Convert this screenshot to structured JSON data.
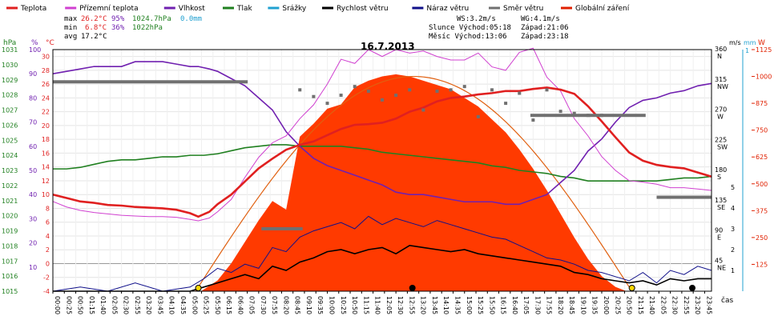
{
  "chart_data": {
    "type": "line",
    "title": "16.7.2013",
    "xlabel": "čas",
    "legend": [
      {
        "name": "Teplota",
        "color": "#e02020"
      },
      {
        "name": "Přízemní teplota",
        "color": "#d040d0"
      },
      {
        "name": "Vlhkost",
        "color": "#7020b0"
      },
      {
        "name": "Tlak",
        "color": "#208020"
      },
      {
        "name": "Srážky",
        "color": "#20a0d0"
      },
      {
        "name": "Rychlost větru",
        "color": "#000000"
      },
      {
        "name": "Náraz větru",
        "color": "#10108a"
      },
      {
        "name": "Směr větru",
        "color": "#707070"
      },
      {
        "name": "Globální záření",
        "color": "#e02000"
      }
    ],
    "stats": {
      "max": {
        "label": "max",
        "temp": "26.2°C",
        "hum": "95%",
        "press": "1024.7hPa",
        "rain": "0.0mm"
      },
      "min": {
        "label": "min",
        "temp": "6.8°C",
        "hum": "36%",
        "press": "1022hPa"
      },
      "avg": {
        "label": "avg",
        "temp": "17.2°C"
      }
    },
    "info": {
      "ws": "WS:3.2m/s",
      "wg": "WG:4.1m/s",
      "sun": "Slunce Východ:05:18",
      "sunset": "Západ:21:06",
      "moon": "Měsíc Východ:13:06",
      "moonset": "Západ:23:18"
    },
    "axes": {
      "hpa": {
        "unit": "hPa",
        "range": [
          1015,
          1031
        ],
        "ticks": [
          "1015",
          "1016",
          "1017",
          "1018",
          "1019",
          "1020",
          "1021",
          "1022",
          "1023",
          "1024",
          "1025",
          "1026",
          "1027",
          "1028",
          "1029",
          "1030",
          "1031"
        ]
      },
      "pct": {
        "unit": "%",
        "range": [
          0,
          100
        ],
        "ticks": [
          "10",
          "20",
          "30",
          "40",
          "50",
          "60",
          "70",
          "80",
          "90",
          "100"
        ]
      },
      "degc": {
        "unit": "°C",
        "range": [
          -4,
          31
        ],
        "ticks": [
          "-4",
          "-2",
          "0",
          "2",
          "4",
          "6",
          "8",
          "10",
          "12",
          "14",
          "16",
          "18",
          "20",
          "22",
          "24",
          "26",
          "28",
          "30"
        ]
      },
      "ms": {
        "unit": "m/s",
        "ticks": [
          "1",
          "2",
          "3",
          "4",
          "5"
        ]
      },
      "mm": {
        "unit": "mm",
        "ticks": [
          "1"
        ]
      },
      "wm2": {
        "unit": "W",
        "range": [
          0,
          1125
        ],
        "ticks": [
          "125",
          "250",
          "375",
          "500",
          "625",
          "750",
          "875",
          "1000",
          "1125"
        ]
      },
      "dir": {
        "ticks": [
          "45\nNE",
          "90\nE",
          "135\nSE",
          "180\nS",
          "225\nSW",
          "270\nW",
          "315\nNW",
          "360\nN"
        ]
      }
    },
    "xticks": [
      "00:00",
      "00:25",
      "00:50",
      "01:15",
      "01:40",
      "02:05",
      "02:30",
      "02:55",
      "03:20",
      "03:45",
      "04:10",
      "04:35",
      "05:00",
      "05:25",
      "05:50",
      "06:15",
      "06:40",
      "07:05",
      "07:30",
      "07:55",
      "08:20",
      "08:45",
      "09:10",
      "09:35",
      "10:00",
      "10:25",
      "10:50",
      "11:15",
      "11:40",
      "12:05",
      "12:30",
      "12:55",
      "13:20",
      "13:45",
      "14:10",
      "14:35",
      "15:00",
      "15:25",
      "15:50",
      "16:15",
      "16:40",
      "17:05",
      "17:30",
      "17:55",
      "18:20",
      "18:45",
      "19:10",
      "19:35",
      "20:00",
      "20:25",
      "20:50",
      "21:15",
      "21:40",
      "22:05",
      "22:30",
      "22:55",
      "23:20",
      "23:45"
    ],
    "series": [
      {
        "name": "Teplota",
        "unit": "°C",
        "x_hours": [
          0,
          0.5,
          1,
          1.5,
          2,
          2.5,
          3,
          3.5,
          4,
          4.5,
          5,
          5.3,
          5.7,
          6,
          6.5,
          7,
          7.5,
          8,
          8.5,
          9,
          9.5,
          10,
          10.5,
          11,
          11.5,
          12,
          12.5,
          13,
          13.5,
          14,
          14.5,
          15,
          15.5,
          16,
          16.5,
          17,
          17.5,
          18,
          18.5,
          19,
          19.5,
          20,
          20.5,
          21,
          21.5,
          22,
          22.5,
          23,
          23.5,
          24
        ],
        "values": [
          10,
          9.5,
          9,
          8.8,
          8.5,
          8.4,
          8.2,
          8.1,
          8,
          7.8,
          7.3,
          6.8,
          7.5,
          8.6,
          10,
          11.9,
          13.8,
          15.2,
          16.5,
          17.2,
          17.7,
          18.6,
          19.5,
          20.1,
          20.2,
          20.4,
          21,
          22,
          22.6,
          23.5,
          24,
          24.2,
          24.5,
          24.7,
          25,
          25,
          25.3,
          25.5,
          25.2,
          24.6,
          22.8,
          20.6,
          18.3,
          16.1,
          14.9,
          14.3,
          14,
          13.8,
          13.2,
          12.6
        ]
      },
      {
        "name": "Přízemní teplota",
        "unit": "°C",
        "x_hours": [
          0,
          0.5,
          1,
          1.5,
          2,
          2.5,
          3,
          3.5,
          4,
          4.5,
          5,
          5.3,
          5.7,
          6,
          6.5,
          7,
          7.5,
          8,
          8.5,
          9,
          9.5,
          10,
          10.5,
          11,
          11.5,
          12,
          12.5,
          13,
          13.5,
          14,
          14.5,
          15,
          15.5,
          16,
          16.5,
          17,
          17.5,
          18,
          18.5,
          19,
          19.5,
          20,
          20.5,
          21,
          21.5,
          22,
          22.5,
          23,
          23.5,
          24
        ],
        "values": [
          9,
          8.2,
          7.7,
          7.4,
          7.2,
          7,
          6.9,
          6.8,
          6.8,
          6.7,
          6.4,
          6.2,
          6.6,
          7.5,
          9.3,
          12.5,
          15.4,
          17.5,
          18.5,
          21,
          23,
          26,
          29.6,
          29,
          31,
          30,
          31,
          30.5,
          30.8,
          30,
          29.5,
          29.5,
          30.5,
          28.5,
          28,
          30.6,
          31.2,
          27,
          25,
          21,
          18.5,
          15.5,
          13.5,
          12,
          11.8,
          11.5,
          11,
          11,
          10.8,
          10.6
        ]
      },
      {
        "name": "Vlhkost",
        "unit": "%",
        "x_hours": [
          0,
          0.5,
          1,
          1.5,
          2,
          2.5,
          3,
          3.5,
          4,
          4.5,
          5,
          5.3,
          5.7,
          6,
          6.5,
          7,
          7.5,
          8,
          8.5,
          9,
          9.5,
          10,
          10.5,
          11,
          11.5,
          12,
          12.5,
          13,
          13.5,
          14,
          14.5,
          15,
          15.5,
          16,
          16.5,
          17,
          17.5,
          18,
          18.5,
          19,
          19.5,
          20,
          20.5,
          21,
          21.5,
          22,
          22.5,
          23,
          23.5,
          24
        ],
        "values": [
          90,
          91,
          92,
          93,
          93,
          93,
          95,
          95,
          95,
          94,
          93,
          93,
          92,
          91,
          88,
          85,
          80,
          75,
          66,
          60,
          55,
          52,
          50,
          48,
          46,
          44,
          41,
          40,
          40,
          39,
          38,
          37,
          37,
          37,
          36,
          36,
          38,
          40,
          45,
          50,
          58,
          63,
          70,
          76,
          79,
          80,
          82,
          83,
          85,
          86
        ]
      },
      {
        "name": "Tlak",
        "unit": "hPa",
        "x_hours": [
          0,
          0.5,
          1,
          1.5,
          2,
          2.5,
          3,
          3.5,
          4,
          4.5,
          5,
          5.5,
          6,
          6.5,
          7,
          7.5,
          8,
          8.5,
          9,
          9.5,
          10,
          10.5,
          11,
          11.5,
          12,
          12.5,
          13,
          13.5,
          14,
          14.5,
          15,
          15.5,
          16,
          16.5,
          17,
          17.5,
          18,
          18.5,
          19,
          19.5,
          20,
          20.5,
          21,
          21.5,
          22,
          22.5,
          23,
          23.5,
          24
        ],
        "values": [
          1023.1,
          1023.1,
          1023.2,
          1023.4,
          1023.6,
          1023.7,
          1023.7,
          1023.8,
          1023.9,
          1023.9,
          1024,
          1024,
          1024.1,
          1024.3,
          1024.5,
          1024.6,
          1024.7,
          1024.7,
          1024.6,
          1024.6,
          1024.6,
          1024.6,
          1024.5,
          1024.4,
          1024.2,
          1024.1,
          1024,
          1023.9,
          1023.8,
          1023.7,
          1023.6,
          1023.5,
          1023.3,
          1023.2,
          1023,
          1022.9,
          1022.8,
          1022.6,
          1022.5,
          1022.3,
          1022.3,
          1022.3,
          1022.3,
          1022.3,
          1022.3,
          1022.4,
          1022.5,
          1022.5,
          1022.6
        ]
      },
      {
        "name": "Rychlost větru",
        "unit": "m/s",
        "x_hours": [
          0,
          1,
          2,
          3,
          4,
          5,
          5.5,
          6,
          6.5,
          7,
          7.5,
          8,
          8.5,
          9,
          9.5,
          10,
          10.5,
          11,
          11.5,
          12,
          12.5,
          13,
          13.5,
          14,
          14.5,
          15,
          15.5,
          16,
          16.5,
          17,
          17.5,
          18,
          18.5,
          19,
          19.5,
          20,
          20.5,
          21,
          21.5,
          22,
          22.5,
          23,
          23.5,
          24
        ],
        "values": [
          0,
          0,
          0,
          0,
          0,
          0,
          0.2,
          0.4,
          0.6,
          0.8,
          0.6,
          1.2,
          1,
          1.4,
          1.6,
          1.9,
          2,
          1.8,
          2,
          2.1,
          1.8,
          2.2,
          2.1,
          2,
          1.9,
          2,
          1.8,
          1.7,
          1.6,
          1.5,
          1.4,
          1.3,
          1.2,
          0.9,
          0.8,
          0.6,
          0.5,
          0.4,
          0.5,
          0.3,
          0.6,
          0.5,
          0.6,
          0.6
        ]
      },
      {
        "name": "Náraz větru",
        "unit": "m/s",
        "x_hours": [
          0,
          1,
          2,
          3,
          4,
          5,
          5.5,
          6,
          6.5,
          7,
          7.5,
          8,
          8.5,
          9,
          9.5,
          10,
          10.5,
          11,
          11.5,
          12,
          12.5,
          13,
          13.5,
          14,
          14.5,
          15,
          15.5,
          16,
          16.5,
          17,
          17.5,
          18,
          18.5,
          19,
          19.5,
          20,
          20.5,
          21,
          21.5,
          22,
          22.5,
          23,
          23.5,
          24
        ],
        "values": [
          0,
          0.2,
          0,
          0.4,
          0,
          0.2,
          0.6,
          1.1,
          0.9,
          1.3,
          1.1,
          2.1,
          1.9,
          2.6,
          2.9,
          3.1,
          3.3,
          3,
          3.6,
          3.2,
          3.5,
          3.3,
          3.1,
          3.4,
          3.2,
          3,
          2.8,
          2.6,
          2.5,
          2.2,
          1.9,
          1.6,
          1.5,
          1.3,
          1,
          0.9,
          0.7,
          0.5,
          0.9,
          0.4,
          1,
          0.8,
          1.2,
          1
        ]
      },
      {
        "name": "Směr větru",
        "unit": "°",
        "x_hours": [
          0,
          1,
          2,
          3,
          4,
          5,
          6,
          6.5,
          7,
          7.5,
          8,
          8.5,
          9,
          9.5,
          10,
          10.5,
          11,
          11.5,
          12,
          12.5,
          13,
          13.5,
          14,
          14.5,
          15,
          15.5,
          16,
          16.5,
          17,
          17.5,
          18,
          18.5,
          19,
          19.5,
          20,
          20.5,
          21,
          21.5,
          22,
          22.5,
          23,
          23.5,
          24
        ],
        "values": [
          312,
          312,
          312,
          312,
          312,
          312,
          312,
          312,
          312,
          93,
          93,
          93,
          300,
          290,
          280,
          292,
          305,
          298,
          285,
          292,
          300,
          270,
          298,
          300,
          305,
          260,
          300,
          280,
          295,
          255,
          300,
          268,
          265,
          262,
          262,
          262,
          262,
          262,
          140,
          140,
          140,
          140,
          140
        ]
      },
      {
        "name": "Globální záření",
        "unit": "W/m²",
        "x_hours": [
          0,
          5.4,
          6,
          6.5,
          7,
          7.5,
          8,
          8.5,
          9,
          9.5,
          10,
          10.5,
          11,
          11.5,
          12,
          12.5,
          13,
          13.5,
          14,
          14.5,
          15,
          15.5,
          16,
          16.5,
          17,
          17.5,
          18,
          18.5,
          19,
          19.5,
          20,
          20.5,
          20.9,
          24
        ],
        "values": [
          0,
          0,
          50,
          130,
          230,
          330,
          420,
          380,
          720,
          780,
          850,
          870,
          950,
          980,
          1000,
          1010,
          1000,
          980,
          960,
          940,
          900,
          860,
          800,
          740,
          660,
          570,
          470,
          360,
          250,
          150,
          70,
          20,
          0,
          0
        ]
      }
    ]
  }
}
